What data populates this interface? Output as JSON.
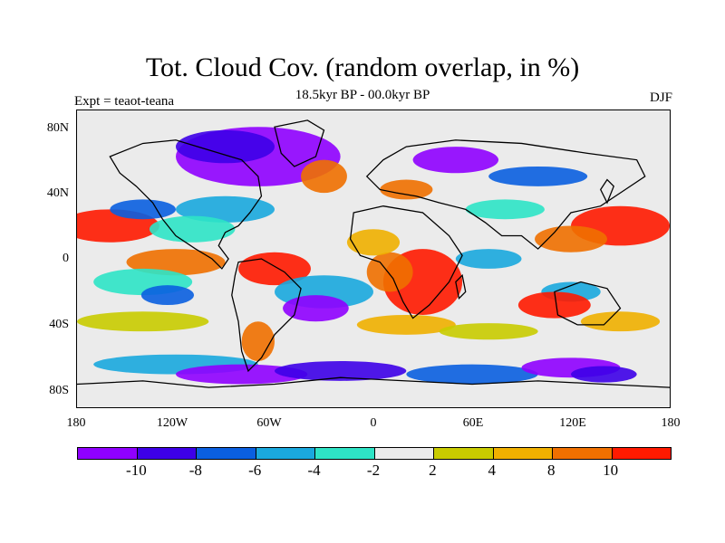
{
  "title": "Tot. Cloud Cov. (random overlap, in %)",
  "subtitle": "18.5kyr BP - 00.0kyr BP",
  "left_label": "Expt = teaot-teana",
  "right_label": "DJF",
  "lat_labels": [
    "80N",
    "40N",
    "0",
    "40S",
    "80S"
  ],
  "lon_labels": [
    "180",
    "120W",
    "60W",
    "0",
    "60E",
    "120E",
    "180"
  ],
  "colorbar": {
    "colors": [
      "#8f00ff",
      "#3d00e8",
      "#0a5fe0",
      "#1aa8de",
      "#2ee4c6",
      "#ebebeb",
      "#c9cc00",
      "#f0b000",
      "#f07000",
      "#ff1a00"
    ],
    "labels": [
      "-10",
      "-8",
      "-6",
      "-4",
      "-2",
      "2",
      "4",
      "8",
      "10"
    ]
  },
  "colors": {
    "ocean_background": "#ebebeb",
    "land_outline": "#000000"
  }
}
